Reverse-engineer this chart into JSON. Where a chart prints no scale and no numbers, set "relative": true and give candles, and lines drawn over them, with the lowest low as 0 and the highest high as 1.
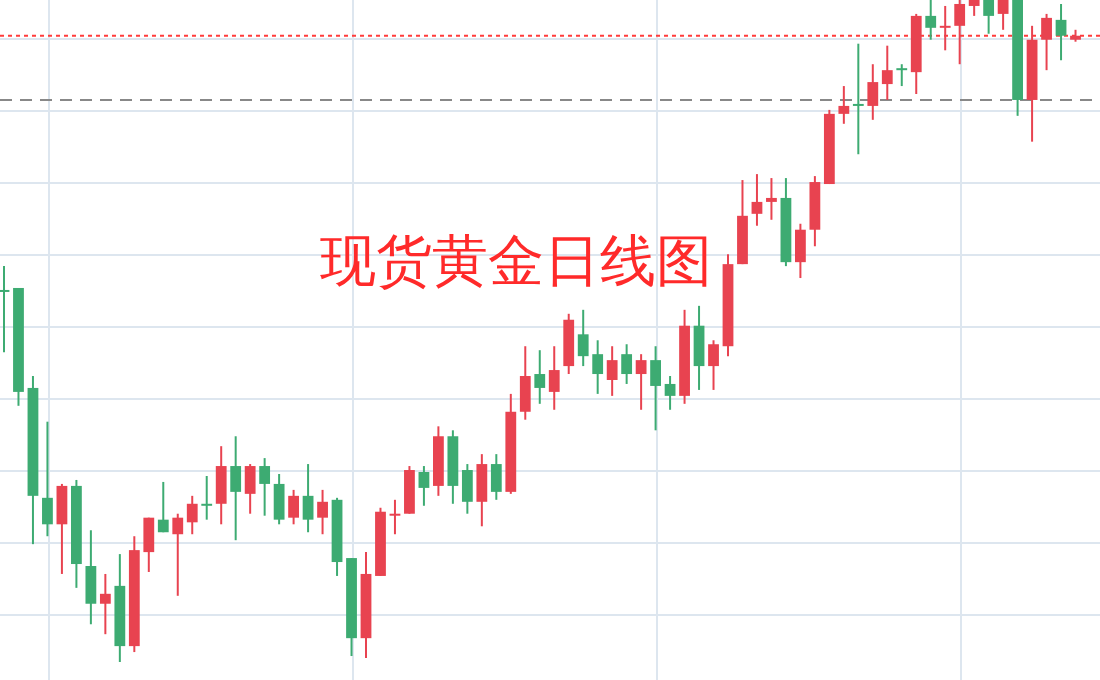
{
  "chart_data": {
    "type": "candlestick",
    "title": "现货黄金日线图",
    "relative": true,
    "grid": true,
    "categories": [
      null,
      null,
      null,
      null,
      null,
      null,
      null,
      null,
      null,
      null,
      null,
      null,
      null,
      null,
      null,
      null,
      null,
      null,
      null,
      null,
      null,
      null,
      null,
      null,
      null,
      null,
      null,
      null,
      null,
      null,
      null,
      null,
      null,
      null,
      null,
      null,
      null,
      null,
      null,
      null,
      null,
      null,
      null,
      null,
      null,
      null,
      null,
      null,
      null,
      null,
      null,
      null,
      null,
      null,
      null,
      null,
      null,
      null,
      null,
      null,
      null,
      null,
      null,
      null,
      null,
      null,
      null,
      null,
      null,
      null,
      null,
      null,
      null,
      null,
      null
    ],
    "ohlc": [
      [
        0.562,
        0.598,
        0.468,
        0.559
      ],
      [
        0.565,
        0.565,
        0.387,
        0.408
      ],
      [
        0.414,
        0.432,
        0.178,
        0.251
      ],
      [
        0.248,
        0.363,
        0.19,
        0.208
      ],
      [
        0.208,
        0.269,
        0.133,
        0.266
      ],
      [
        0.266,
        0.275,
        0.112,
        0.148
      ],
      [
        0.145,
        0.199,
        0.057,
        0.088
      ],
      [
        0.088,
        0.133,
        0.042,
        0.103
      ],
      [
        0.115,
        0.163,
        0.0,
        0.024
      ],
      [
        0.024,
        0.19,
        0.015,
        0.169
      ],
      [
        0.166,
        0.218,
        0.136,
        0.218
      ],
      [
        0.215,
        0.272,
        0.196,
        0.196
      ],
      [
        0.193,
        0.224,
        0.1,
        0.218
      ],
      [
        0.211,
        0.251,
        0.193,
        0.239
      ],
      [
        0.239,
        0.281,
        0.215,
        0.236
      ],
      [
        0.239,
        0.326,
        0.208,
        0.296
      ],
      [
        0.296,
        0.341,
        0.184,
        0.257
      ],
      [
        0.254,
        0.299,
        0.224,
        0.296
      ],
      [
        0.296,
        0.308,
        0.221,
        0.269
      ],
      [
        0.269,
        0.284,
        0.208,
        0.215
      ],
      [
        0.218,
        0.26,
        0.208,
        0.251
      ],
      [
        0.251,
        0.299,
        0.196,
        0.215
      ],
      [
        0.218,
        0.26,
        0.193,
        0.242
      ],
      [
        0.245,
        0.248,
        0.13,
        0.151
      ],
      [
        0.157,
        0.157,
        0.009,
        0.036
      ],
      [
        0.036,
        0.166,
        0.006,
        0.133
      ],
      [
        0.13,
        0.233,
        0.13,
        0.227
      ],
      [
        0.221,
        0.245,
        0.193,
        0.224
      ],
      [
        0.224,
        0.296,
        0.224,
        0.29
      ],
      [
        0.287,
        0.296,
        0.236,
        0.263
      ],
      [
        0.266,
        0.356,
        0.251,
        0.341
      ],
      [
        0.341,
        0.35,
        0.239,
        0.266
      ],
      [
        0.29,
        0.299,
        0.224,
        0.242
      ],
      [
        0.242,
        0.314,
        0.205,
        0.299
      ],
      [
        0.299,
        0.314,
        0.245,
        0.257
      ],
      [
        0.257,
        0.405,
        0.254,
        0.378
      ],
      [
        0.378,
        0.477,
        0.366,
        0.432
      ],
      [
        0.435,
        0.471,
        0.39,
        0.414
      ],
      [
        0.408,
        0.477,
        0.381,
        0.441
      ],
      [
        0.447,
        0.526,
        0.435,
        0.517
      ],
      [
        0.495,
        0.532,
        0.447,
        0.462
      ],
      [
        0.465,
        0.486,
        0.405,
        0.435
      ],
      [
        0.426,
        0.477,
        0.402,
        0.456
      ],
      [
        0.465,
        0.48,
        0.42,
        0.435
      ],
      [
        0.435,
        0.465,
        0.381,
        0.456
      ],
      [
        0.456,
        0.477,
        0.35,
        0.417
      ],
      [
        0.42,
        0.432,
        0.381,
        0.402
      ],
      [
        0.402,
        0.532,
        0.39,
        0.508
      ],
      [
        0.508,
        0.538,
        0.411,
        0.447
      ],
      [
        0.447,
        0.486,
        0.411,
        0.48
      ],
      [
        0.477,
        0.616,
        0.462,
        0.601
      ],
      [
        0.601,
        0.728,
        0.601,
        0.674
      ],
      [
        0.677,
        0.737,
        0.659,
        0.695
      ],
      [
        0.695,
        0.731,
        0.668,
        0.701
      ],
      [
        0.701,
        0.731,
        0.598,
        0.604
      ],
      [
        0.604,
        0.662,
        0.58,
        0.653
      ],
      [
        0.653,
        0.734,
        0.628,
        0.725
      ],
      [
        0.722,
        0.834,
        0.722,
        0.828
      ],
      [
        0.828,
        0.87,
        0.813,
        0.84
      ],
      [
        0.843,
        0.934,
        0.767,
        0.84
      ],
      [
        0.84,
        0.903,
        0.819,
        0.876
      ],
      [
        0.873,
        0.931,
        0.849,
        0.894
      ],
      [
        0.897,
        0.903,
        0.87,
        0.894
      ],
      [
        0.891,
        0.979,
        0.858,
        0.976
      ],
      [
        0.976,
        1.0,
        0.94,
        0.958
      ],
      [
        0.958,
        0.991,
        0.924,
        0.961
      ],
      [
        0.961,
        1.0,
        0.903,
        0.994
      ],
      [
        0.991,
        1.0,
        0.976,
        1.0
      ],
      [
        1.0,
        1.0,
        0.949,
        0.976
      ],
      [
        0.979,
        1.0,
        0.955,
        1.0
      ],
      [
        1.0,
        1.0,
        0.825,
        0.849
      ],
      [
        0.849,
        0.961,
        0.786,
        0.94
      ],
      [
        0.94,
        0.979,
        0.894,
        0.973
      ],
      [
        0.97,
        0.994,
        0.909,
        0.946
      ],
      [
        0.94,
        0.955,
        0.937,
        0.946
      ]
    ],
    "colors": [
      "#3dab72",
      "#3dab72",
      "#3dab72",
      "#3dab72",
      "#e84350",
      "#3dab72",
      "#3dab72",
      "#e84350",
      "#3dab72",
      "#e84350",
      "#e84350",
      "#3dab72",
      "#e84350",
      "#e84350",
      "#3dab72",
      "#e84350",
      "#3dab72",
      "#e84350",
      "#3dab72",
      "#3dab72",
      "#e84350",
      "#3dab72",
      "#e84350",
      "#3dab72",
      "#3dab72",
      "#e84350",
      "#e84350",
      "#e84350",
      "#e84350",
      "#3dab72",
      "#e84350",
      "#3dab72",
      "#3dab72",
      "#e84350",
      "#3dab72",
      "#e84350",
      "#e84350",
      "#3dab72",
      "#e84350",
      "#e84350",
      "#3dab72",
      "#3dab72",
      "#e84350",
      "#3dab72",
      "#e84350",
      "#3dab72",
      "#3dab72",
      "#e84350",
      "#3dab72",
      "#e84350",
      "#e84350",
      "#e84350",
      "#e84350",
      "#e84350",
      "#3dab72",
      "#e84350",
      "#e84350",
      "#e84350",
      "#e84350",
      "#3dab72",
      "#e84350",
      "#e84350",
      "#3dab72",
      "#e84350",
      "#3dab72",
      "#e84350",
      "#e84350",
      "#e84350",
      "#3dab72",
      "#e84350",
      "#3dab72",
      "#e84350",
      "#e84350",
      "#3dab72",
      "#e84350"
    ],
    "ref_lines": [
      {
        "axis": "y",
        "value": 0.946,
        "color": "#ff3b3b",
        "line_style": "dotted"
      },
      {
        "axis": "y",
        "value": 0.849,
        "color": "#888888",
        "line_style": "dashed"
      }
    ]
  }
}
